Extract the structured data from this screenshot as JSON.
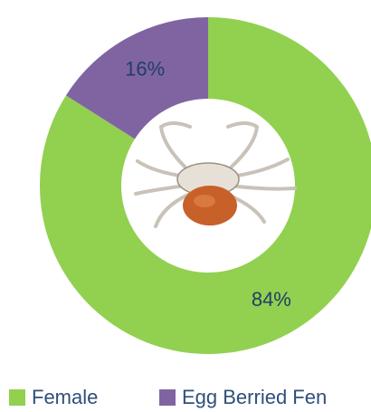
{
  "chart_data": {
    "type": "pie",
    "donut": true,
    "categories": [
      "Female",
      "Egg Berried Fen"
    ],
    "values": [
      84,
      16
    ],
    "value_labels": [
      "84%",
      "16%"
    ],
    "colors": [
      "#92d050",
      "#8064a2"
    ]
  }
}
